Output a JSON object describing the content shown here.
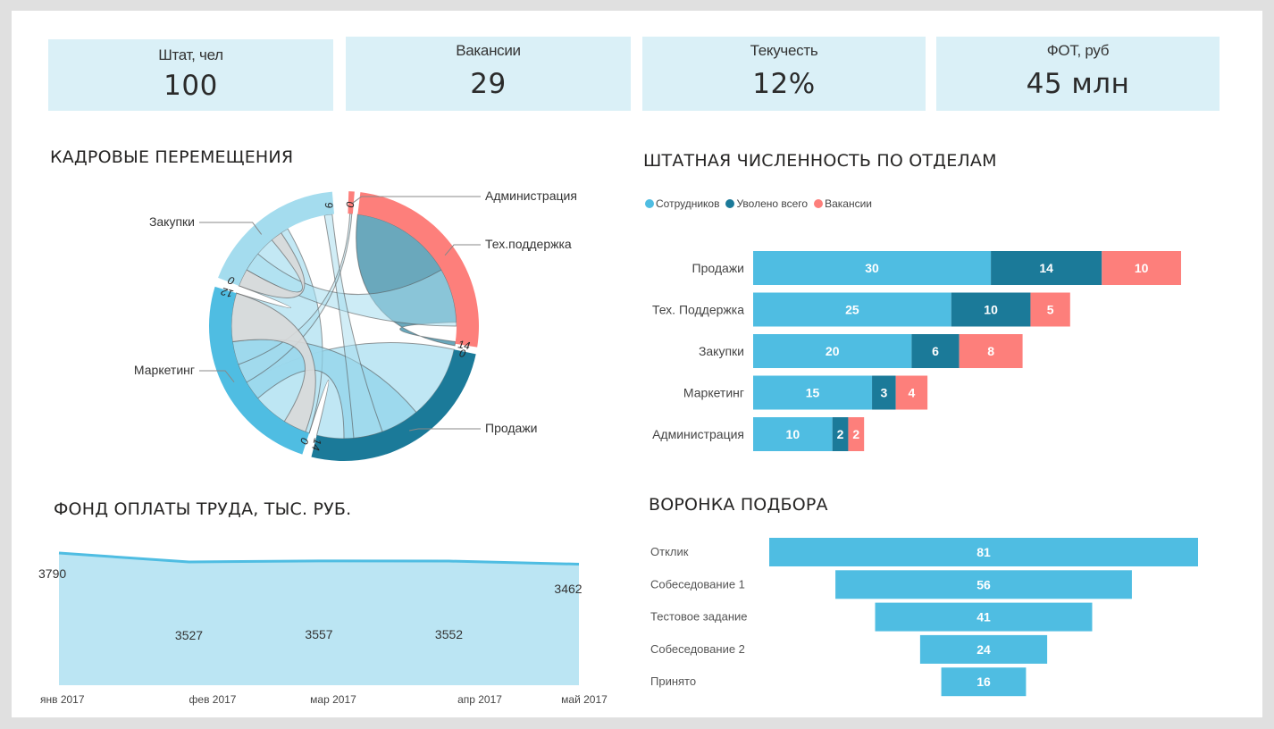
{
  "kpis": [
    {
      "label": "Штат, чел",
      "value": "100"
    },
    {
      "label": "Вакансии",
      "value": "29"
    },
    {
      "label": "Текучесть",
      "value": "12%"
    },
    {
      "label": "ФОТ, руб",
      "value": "45 млн"
    }
  ],
  "colors": {
    "employees": "#4fbde2",
    "fired": "#1b7a99",
    "vacancies": "#fd7f7b",
    "kpi_bg": "#daf0f7",
    "area_fill": "#bbe5f3",
    "line": "#4fbde2",
    "zakupki": "#a4dcee",
    "marketing": "#4fbde2",
    "prodazhi": "#1b7a99",
    "techsupport": "#fd7f7b",
    "admin": "#fd7f7b"
  },
  "chart_data": [
    {
      "type": "chord",
      "title": "КАДРОВЫЕ ПЕРЕМЕЩЕНИЯ",
      "groups": [
        {
          "name": "Администрация",
          "ticks": [
            "0"
          ]
        },
        {
          "name": "Тех.поддержка",
          "ticks": [
            "14"
          ]
        },
        {
          "name": "Продажи",
          "ticks": [
            "0",
            "14"
          ]
        },
        {
          "name": "Маркетинг",
          "ticks": [
            "0",
            "12"
          ]
        },
        {
          "name": "Закупки",
          "ticks": [
            "0",
            "6"
          ]
        }
      ]
    },
    {
      "type": "bar",
      "orientation": "horizontal",
      "stacked": true,
      "title": "ШТАТНАЯ ЧИСЛЕННОСТЬ ПО ОТДЕЛАМ",
      "legend_position": "top-left",
      "categories": [
        "Продажи",
        "Тех. Поддержка",
        "Закупки",
        "Маркетинг",
        "Администрация"
      ],
      "series": [
        {
          "name": "Сотрудников",
          "values": [
            30,
            25,
            20,
            15,
            10
          ]
        },
        {
          "name": "Уволено всего",
          "values": [
            14,
            10,
            6,
            3,
            2
          ]
        },
        {
          "name": "Вакансии",
          "values": [
            10,
            5,
            8,
            4,
            2
          ]
        }
      ]
    },
    {
      "type": "area",
      "title": "ФОНД ОПЛАТЫ ТРУДА, ТЫС. РУБ.",
      "x": [
        "янв 2017",
        "фев 2017",
        "мар 2017",
        "апр 2017",
        "май 2017"
      ],
      "values": [
        3790,
        3527,
        3557,
        3552,
        3462
      ],
      "data_labels": [
        "3790",
        "3527",
        "3557",
        "3552",
        "3462"
      ],
      "ylim": [
        0,
        3790
      ]
    },
    {
      "type": "bar",
      "subtype": "funnel",
      "title": "ВОРОНКА ПОДБОРА",
      "categories": [
        "Отклик",
        "Собеседование 1",
        "Тестовое задание",
        "Собеседование 2",
        "Принято"
      ],
      "values": [
        81,
        56,
        41,
        24,
        16
      ]
    }
  ]
}
